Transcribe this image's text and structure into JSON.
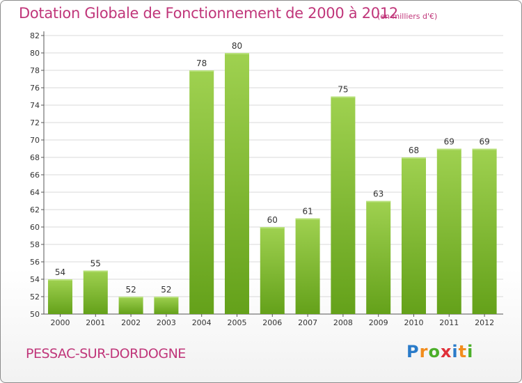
{
  "title": "Dotation Globale de Fonctionnement de 2000 à 2012",
  "subtitle": "(en milliers d'€)",
  "commune": "PESSAC-SUR-DORDOGNE",
  "logo": {
    "letters": [
      "P",
      "r",
      "o",
      "x",
      "i",
      "t",
      "i"
    ],
    "colors": [
      "#2a7bc9",
      "#f28c1c",
      "#4caf2a",
      "#e0303a",
      "#2a7bc9",
      "#f28c1c",
      "#4caf2a"
    ]
  },
  "colors": {
    "title": "#c0367a",
    "bar_light": "#9fd150",
    "bar_dark": "#64a11a",
    "grid": "#d9d9d9"
  },
  "chart_data": {
    "type": "bar",
    "title": "Dotation Globale de Fonctionnement de 2000 à 2012",
    "subtitle": "(en milliers d'€)",
    "xlabel": "",
    "ylabel": "",
    "categories": [
      "2000",
      "2001",
      "2002",
      "2003",
      "2004",
      "2005",
      "2006",
      "2007",
      "2008",
      "2009",
      "2010",
      "2011",
      "2012"
    ],
    "values": [
      54,
      55,
      52,
      52,
      78,
      80,
      60,
      61,
      75,
      63,
      68,
      69,
      69
    ],
    "ylim": [
      50,
      82
    ],
    "yticks": [
      50,
      52,
      54,
      56,
      58,
      60,
      62,
      64,
      66,
      68,
      70,
      72,
      74,
      76,
      78,
      80,
      82
    ],
    "grid": true,
    "legend": "none"
  }
}
